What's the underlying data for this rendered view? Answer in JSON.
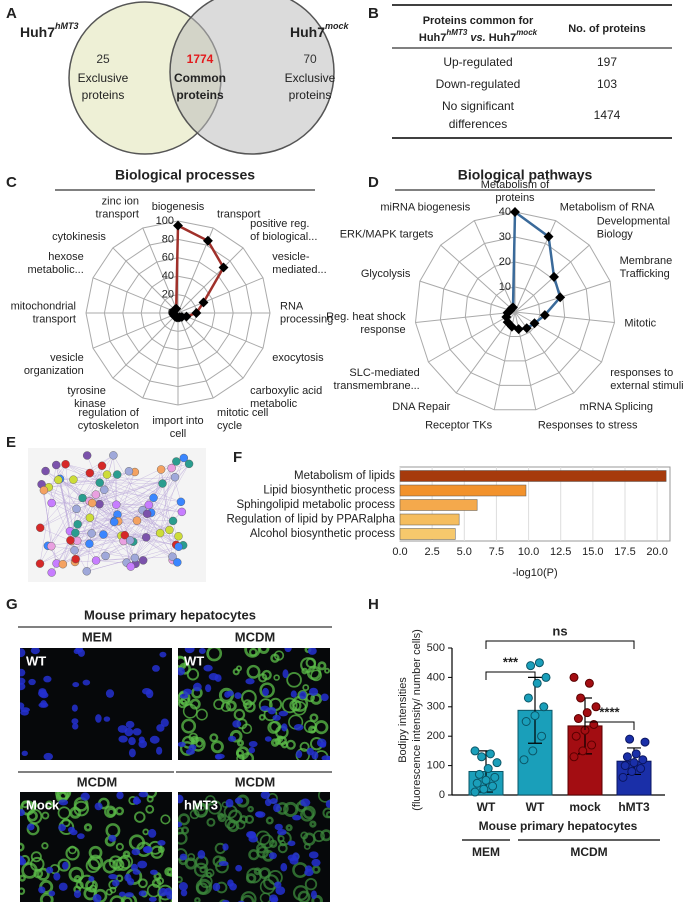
{
  "panels": [
    "A",
    "B",
    "C",
    "D",
    "E",
    "F",
    "G",
    "H"
  ],
  "venn": {
    "left_label": {
      "base": "Huh7",
      "sup": "hMT3"
    },
    "right_label": {
      "base": "Huh7",
      "sup": "mock"
    },
    "left": {
      "count": 25,
      "lines": [
        "Exclusive",
        "proteins"
      ]
    },
    "center": {
      "count": 1774,
      "lines": [
        "Common",
        "proteins"
      ]
    },
    "right": {
      "count": 70,
      "lines": [
        "Exclusive",
        "proteins"
      ]
    }
  },
  "table": {
    "header": {
      "line1": "Proteins common for",
      "line2": [
        "Huh7",
        "hMT3",
        " vs. ",
        "Huh7",
        "mock"
      ],
      "col2": "No. of proteins"
    },
    "rows": [
      {
        "label": [
          "Up-regulated"
        ],
        "value": 197
      },
      {
        "label": [
          "Down-regulated"
        ],
        "value": 103
      },
      {
        "label": [
          "No significant",
          "differences"
        ],
        "value": 1474
      }
    ]
  },
  "radar_c": {
    "type": "radar",
    "title": "Biological processes",
    "categories": [
      [
        "biogenesis"
      ],
      [
        "transport"
      ],
      [
        "positive reg.",
        "of biological..."
      ],
      [
        "vesicle-",
        "mediated..."
      ],
      [
        "RNA",
        "processing"
      ],
      [
        "exocytosis"
      ],
      [
        "carboxylic acid",
        "metabolic"
      ],
      [
        "mitotic cell",
        "cycle"
      ],
      [
        "import into",
        "cell"
      ],
      [
        "regulation of",
        "cytoskeleton"
      ],
      [
        "tyrosine",
        "kinase"
      ],
      [
        "vesicle",
        "organization"
      ],
      [
        "mitochondrial",
        "transport"
      ],
      [
        "hexose",
        "metabolic..."
      ],
      [
        "cytokinesis"
      ],
      [
        "zinc ion",
        "transport"
      ]
    ],
    "values": [
      95,
      85,
      70,
      30,
      20,
      10,
      6,
      5,
      5,
      5,
      5,
      5,
      5,
      5,
      5,
      5
    ],
    "color": "#a0302a",
    "rlim": [
      0,
      100
    ],
    "rticks": [
      0,
      20,
      40,
      60,
      80,
      100
    ]
  },
  "radar_d": {
    "type": "radar",
    "title": "Biological pathways",
    "categories": [
      [
        "Metabolism of",
        "proteins"
      ],
      [
        "Metabolism of RNA"
      ],
      [
        "Developmental",
        "Biology"
      ],
      [
        "Membrane",
        "Trafficking"
      ],
      [
        "Mitotic"
      ],
      [
        "responses to",
        "external stimuli"
      ],
      [
        "mRNA Splicing"
      ],
      [
        "Responses to stress"
      ],
      [
        "Receptor TKs"
      ],
      [
        "DNA Repair"
      ],
      [
        "SLC-mediated",
        "transmembrane..."
      ],
      [
        "Reg. heat shock",
        "response"
      ],
      [
        "Glycolysis"
      ],
      [
        "ERK/MAPK targets"
      ],
      [
        "miRNA biogenesis"
      ]
    ],
    "values": [
      40,
      33,
      21,
      19,
      12,
      9,
      8,
      7,
      6,
      5,
      4,
      3,
      2,
      2,
      2
    ],
    "color": "#3a6a9a",
    "rlim": [
      0,
      40
    ],
    "rticks": [
      10,
      20,
      30,
      40
    ]
  },
  "bar_f": {
    "type": "barh",
    "categories": [
      "Metabolism of lipids",
      "Lipid biosynthetic process",
      "Sphingolipid metabolic process",
      "Regulation of lipid by PPARalpha",
      "Alcohol biosynthetic process"
    ],
    "values": [
      20.7,
      9.8,
      6.0,
      4.6,
      4.3
    ],
    "colors": [
      "#a63a0c",
      "#f2922c",
      "#f4a94c",
      "#f5bd5e",
      "#f6c86c"
    ],
    "xlim": [
      0,
      21
    ],
    "xticks": [
      {
        "value": 0,
        "label": "0.0"
      },
      2.5,
      {
        "value": 5,
        "label": "5.0"
      },
      7.5,
      {
        "value": 10,
        "label": "10.0"
      },
      12.5,
      {
        "value": 15,
        "label": "15.0"
      },
      17.5,
      {
        "value": 20,
        "label": "20.0"
      }
    ],
    "xlabel": "-log10(P)",
    "grid": true
  },
  "micro_g": {
    "title": "Mouse primary hepatocytes",
    "top_labels": [
      "MEM",
      "MCDM"
    ],
    "bottom_labels": [
      "MCDM",
      "MCDM"
    ],
    "images": [
      "WT",
      "WT",
      "Mock",
      "hMT3"
    ]
  },
  "bar_h": {
    "type": "bar",
    "categories": [
      "WT",
      "WT",
      "mock",
      "hMT3"
    ],
    "values": [
      80,
      288,
      235,
      115
    ],
    "errors": [
      70,
      112,
      95,
      45
    ],
    "points": [
      [
        10,
        20,
        30,
        40,
        50,
        60,
        70,
        90,
        110,
        130,
        140,
        150
      ],
      [
        120,
        150,
        200,
        250,
        270,
        300,
        330,
        380,
        400,
        440,
        450
      ],
      [
        130,
        150,
        170,
        200,
        220,
        240,
        260,
        280,
        300,
        330,
        380,
        400
      ],
      [
        60,
        80,
        90,
        100,
        110,
        120,
        130,
        140,
        180,
        190
      ]
    ],
    "colors": [
      "#1a9fba",
      "#1a9fba",
      "#a30d12",
      "#1a2fa8"
    ],
    "ylim": [
      0,
      500
    ],
    "yticks": [
      0,
      100,
      200,
      300,
      400,
      500
    ],
    "ylabel": [
      "Bodipy intensities",
      "(fluorescence intensity/ number cells)"
    ],
    "group_label": "Mouse primary hepatocytes",
    "groups": [
      "MEM",
      "MCDM"
    ],
    "significance": [
      "***",
      "****",
      "ns"
    ]
  }
}
